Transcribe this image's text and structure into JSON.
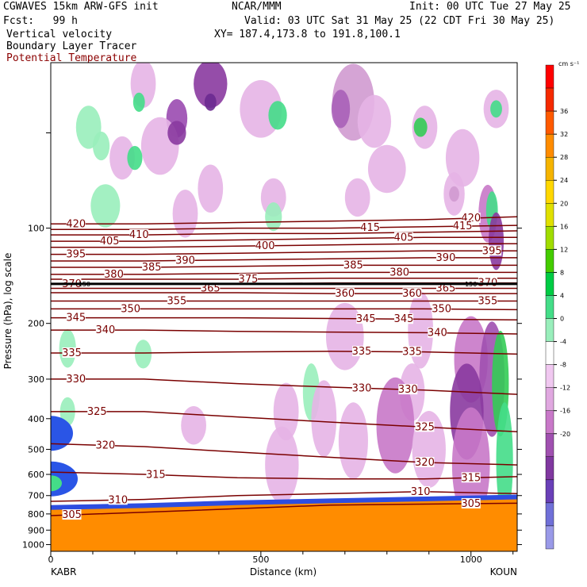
{
  "header": {
    "model": "CGWAVES 15km ARW-GFS init",
    "org": "NCAR/MMM",
    "init": "Init: 00 UTC Tue 27 May 25",
    "fcst": "Fcst:   99 h",
    "valid": "Valid: 03 UTC Sat 31 May 25 (22 CDT Fri 30 May 25)",
    "field1": "Vertical velocity",
    "xy": "XY= 187.4,173.8 to 191.8,100.1",
    "field2": "Boundary Layer Tracer",
    "field3": "Potential Temperature"
  },
  "colorbar": {
    "unit": "cm s⁻¹",
    "levels": [
      36,
      32,
      28,
      24,
      20,
      16,
      12,
      8,
      4,
      0,
      -4,
      -8,
      -12,
      -16,
      -20
    ],
    "colors": [
      "#ff0000",
      "#f52a00",
      "#ff5a00",
      "#ff8c00",
      "#f5b400",
      "#ffd700",
      "#e0e000",
      "#a0dc00",
      "#44cc00",
      "#00cc44",
      "#44dd88",
      "#99eebb",
      "#ffffff",
      "#f0c8f0",
      "#e0a8e0",
      "#c878c8",
      "#a050b0",
      "#8038a0",
      "#6a40b8",
      "#7070d8",
      "#9a9ae8"
    ]
  },
  "chart_data": {
    "type": "contour",
    "xlabel": "Distance (km)",
    "ylabel": "Pressure (hPa), log scale",
    "x_ticks": [
      0,
      500,
      1000
    ],
    "x_range": [
      0,
      1110
    ],
    "y_ticks": [
      100,
      200,
      300,
      400,
      500,
      600,
      700,
      800,
      900,
      1000
    ],
    "y_range": [
      30,
      1050
    ],
    "y_scale": "log",
    "start_label": "KABR",
    "end_label": "KOUN",
    "tropopause_label": "150",
    "theta_isentropes": [
      {
        "value": 420,
        "p": [
          97,
          97,
          96,
          95,
          94,
          92
        ],
        "labels": [
          [
            60,
            420
          ],
          [
            1000,
            420
          ]
        ]
      },
      {
        "value": 415,
        "p": [
          101,
          101,
          100,
          100,
          99,
          98
        ],
        "labels": [
          [
            760,
            415
          ],
          [
            980,
            415
          ]
        ]
      },
      {
        "value": 410,
        "p": [
          105,
          105,
          104,
          104,
          103,
          102
        ],
        "labels": [
          [
            210,
            410
          ]
        ]
      },
      {
        "value": 405,
        "p": [
          110,
          110,
          109,
          108,
          107,
          107
        ],
        "labels": [
          [
            140,
            405
          ],
          [
            840,
            405
          ]
        ]
      },
      {
        "value": 400,
        "p": [
          115,
          115,
          114,
          113,
          112,
          112
        ],
        "labels": [
          [
            510,
            400
          ]
        ]
      },
      {
        "value": 395,
        "p": [
          121,
          121,
          120,
          119,
          118,
          118
        ],
        "labels": [
          [
            60,
            395
          ],
          [
            1050,
            395
          ]
        ]
      },
      {
        "value": 390,
        "p": [
          127,
          127,
          126,
          125,
          124,
          124
        ],
        "labels": [
          [
            320,
            390
          ],
          [
            940,
            390
          ]
        ]
      },
      {
        "value": 385,
        "p": [
          133,
          133,
          132,
          131,
          131,
          131
        ],
        "labels": [
          [
            240,
            385
          ],
          [
            720,
            385
          ]
        ]
      },
      {
        "value": 380,
        "p": [
          140,
          140,
          139,
          138,
          138,
          138
        ],
        "labels": [
          [
            150,
            380
          ],
          [
            830,
            380
          ]
        ]
      },
      {
        "value": 375,
        "p": [
          145,
          145,
          145,
          144,
          144,
          144
        ],
        "labels": [
          [
            470,
            375
          ]
        ]
      },
      {
        "value": 370,
        "p": [
          150,
          150,
          150,
          149,
          149,
          149
        ],
        "labels": [
          [
            50,
            370
          ],
          [
            1040,
            370
          ]
        ]
      },
      {
        "value": 365,
        "p": [
          155,
          155,
          155,
          155,
          155,
          155
        ],
        "labels": [
          [
            380,
            365
          ],
          [
            940,
            365
          ]
        ]
      },
      {
        "value": 360,
        "p": [
          160,
          160,
          160,
          161,
          161,
          161
        ],
        "labels": [
          [
            700,
            360
          ],
          [
            860,
            360
          ]
        ]
      },
      {
        "value": 355,
        "p": [
          170,
          170,
          170,
          170,
          170,
          170
        ],
        "labels": [
          [
            300,
            355
          ],
          [
            1040,
            355
          ]
        ]
      },
      {
        "value": 350,
        "p": [
          180,
          180,
          180,
          180,
          180,
          181
        ],
        "labels": [
          [
            190,
            350
          ],
          [
            930,
            350
          ]
        ]
      },
      {
        "value": 345,
        "p": [
          192,
          192,
          192,
          193,
          194,
          195
        ],
        "labels": [
          [
            60,
            345
          ],
          [
            750,
            345
          ],
          [
            840,
            345
          ]
        ]
      },
      {
        "value": 340,
        "p": [
          210,
          210,
          212,
          213,
          214,
          216
        ],
        "labels": [
          [
            130,
            340
          ],
          [
            920,
            340
          ]
        ]
      },
      {
        "value": 335,
        "p": [
          248,
          248,
          246,
          245,
          246,
          250
        ],
        "labels": [
          [
            50,
            335
          ],
          [
            740,
            335
          ],
          [
            860,
            335
          ]
        ]
      },
      {
        "value": 330,
        "p": [
          300,
          300,
          310,
          318,
          325,
          335
        ],
        "labels": [
          [
            60,
            330
          ],
          [
            740,
            330
          ],
          [
            850,
            330
          ]
        ]
      },
      {
        "value": 325,
        "p": [
          380,
          380,
          395,
          410,
          425,
          440
        ],
        "labels": [
          [
            110,
            325
          ],
          [
            890,
            325
          ]
        ]
      },
      {
        "value": 320,
        "p": [
          480,
          490,
          510,
          530,
          550,
          560
        ],
        "labels": [
          [
            130,
            320
          ],
          [
            890,
            320
          ]
        ]
      },
      {
        "value": 315,
        "p": [
          590,
          600,
          615,
          620,
          620,
          610
        ],
        "labels": [
          [
            250,
            315
          ],
          [
            1000,
            315
          ]
        ]
      },
      {
        "value": 310,
        "p": [
          730,
          720,
          700,
          690,
          680,
          690
        ],
        "labels": [
          [
            160,
            310
          ],
          [
            880,
            310
          ]
        ]
      },
      {
        "value": 305,
        "p": [
          810,
          790,
          770,
          750,
          745,
          740
        ],
        "labels": [
          [
            50,
            305
          ],
          [
            1000,
            305
          ]
        ]
      }
    ],
    "boundary_layer_top_hPa": [
      750,
      740,
      725,
      715,
      705,
      695
    ],
    "tropopause_hPa": 150
  }
}
